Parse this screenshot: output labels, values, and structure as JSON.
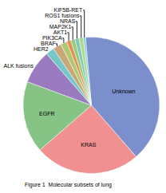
{
  "chart_data": {
    "type": "pie",
    "categories": [
      "Unknown",
      "KRAS",
      "EGFR",
      "ALK fusions",
      "HER2",
      "BRAF",
      "PIK3CA",
      "AKT1",
      "MAP2K1",
      "NRAS",
      "ROS1 fusions",
      "KIF5B-RET"
    ],
    "values": [
      40,
      25,
      17,
      8,
      2,
      2,
      1.5,
      1,
      1,
      1,
      1,
      0.5
    ],
    "colors": [
      "#7b8fcc",
      "#f09090",
      "#85c485",
      "#9b7bbf",
      "#75c8c8",
      "#c8a878",
      "#b0c870",
      "#e09050",
      "#98c880",
      "#80c8b8",
      "#b0d890",
      "#80cce0"
    ],
    "annotations": [
      "Figure 1  Molecular subsets of lung"
    ]
  }
}
